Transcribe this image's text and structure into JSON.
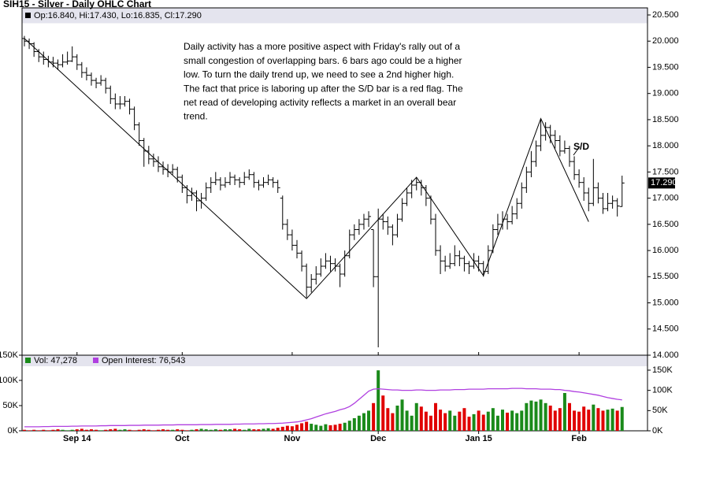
{
  "chart_data": {
    "type": "ohlc",
    "title": "SIH15 - Silver - Daily OHLC Chart",
    "ohlc_label": "Op:16.840, Hi:17.430, Lo:16.835, Cl:17.290",
    "last_label": "17.290",
    "color": "#000000",
    "categories": [
      null,
      null,
      null,
      null,
      null,
      null,
      null,
      null,
      null,
      null,
      null,
      "Sep 14",
      null,
      null,
      null,
      null,
      null,
      null,
      null,
      null,
      null,
      null,
      null,
      null,
      null,
      null,
      null,
      null,
      null,
      null,
      null,
      null,
      null,
      "Oct",
      null,
      null,
      null,
      null,
      null,
      null,
      null,
      null,
      null,
      null,
      null,
      null,
      null,
      null,
      null,
      null,
      null,
      null,
      null,
      null,
      null,
      null,
      "Nov",
      null,
      null,
      null,
      null,
      null,
      null,
      null,
      null,
      null,
      null,
      null,
      null,
      null,
      null,
      null,
      null,
      null,
      "Dec",
      null,
      null,
      null,
      null,
      null,
      null,
      null,
      null,
      null,
      null,
      null,
      null,
      null,
      null,
      null,
      null,
      null,
      null,
      null,
      null,
      "Jan 15",
      null,
      null,
      null,
      null,
      null,
      null,
      null,
      null,
      null,
      null,
      null,
      null,
      null,
      null,
      null,
      null,
      null,
      null,
      null,
      null,
      "Feb",
      null,
      null,
      null,
      null,
      null,
      null,
      null,
      null,
      null
    ],
    "ohlc": [
      [
        20.05,
        20.1,
        19.9,
        20.0
      ],
      [
        20.0,
        20.05,
        19.85,
        19.95
      ],
      [
        19.95,
        19.98,
        19.7,
        19.8
      ],
      [
        19.8,
        19.85,
        19.6,
        19.7
      ],
      [
        19.7,
        19.8,
        19.55,
        19.65
      ],
      [
        19.65,
        19.72,
        19.5,
        19.6
      ],
      [
        19.6,
        19.7,
        19.5,
        19.58
      ],
      [
        19.58,
        19.65,
        19.45,
        19.55
      ],
      [
        19.55,
        19.75,
        19.5,
        19.6
      ],
      [
        19.6,
        19.8,
        19.55,
        19.62
      ],
      [
        19.62,
        19.9,
        19.6,
        19.7
      ],
      [
        19.7,
        19.75,
        19.45,
        19.55
      ],
      [
        19.55,
        19.6,
        19.3,
        19.4
      ],
      [
        19.4,
        19.5,
        19.25,
        19.35
      ],
      [
        19.35,
        19.4,
        19.15,
        19.25
      ],
      [
        19.25,
        19.3,
        19.1,
        19.2
      ],
      [
        19.2,
        19.35,
        19.15,
        19.25
      ],
      [
        19.25,
        19.3,
        19.0,
        19.1
      ],
      [
        19.1,
        19.15,
        18.8,
        18.9
      ],
      [
        18.9,
        19.0,
        18.7,
        18.8
      ],
      [
        18.8,
        18.95,
        18.7,
        18.8
      ],
      [
        18.8,
        18.95,
        18.75,
        18.85
      ],
      [
        18.85,
        18.9,
        18.6,
        18.7
      ],
      [
        18.7,
        18.75,
        18.3,
        18.4
      ],
      [
        18.4,
        18.45,
        18.0,
        18.1
      ],
      [
        18.1,
        18.15,
        17.6,
        17.9
      ],
      [
        17.9,
        18.0,
        17.65,
        17.75
      ],
      [
        17.75,
        17.85,
        17.6,
        17.7
      ],
      [
        17.7,
        17.8,
        17.5,
        17.6
      ],
      [
        17.6,
        17.7,
        17.45,
        17.55
      ],
      [
        17.55,
        17.65,
        17.4,
        17.5
      ],
      [
        17.5,
        17.65,
        17.45,
        17.55
      ],
      [
        17.55,
        17.6,
        17.3,
        17.4
      ],
      [
        17.4,
        17.45,
        17.1,
        17.2
      ],
      [
        17.2,
        17.25,
        16.9,
        17.05
      ],
      [
        17.05,
        17.2,
        16.95,
        17.1
      ],
      [
        17.1,
        17.15,
        16.75,
        16.95
      ],
      [
        16.95,
        17.1,
        16.8,
        17.0
      ],
      [
        17.0,
        17.3,
        16.95,
        17.2
      ],
      [
        17.2,
        17.4,
        17.1,
        17.3
      ],
      [
        17.3,
        17.5,
        17.25,
        17.35
      ],
      [
        17.35,
        17.4,
        17.15,
        17.25
      ],
      [
        17.25,
        17.4,
        17.2,
        17.3
      ],
      [
        17.3,
        17.5,
        17.25,
        17.4
      ],
      [
        17.4,
        17.45,
        17.25,
        17.35
      ],
      [
        17.35,
        17.4,
        17.2,
        17.3
      ],
      [
        17.3,
        17.5,
        17.25,
        17.4
      ],
      [
        17.4,
        17.55,
        17.35,
        17.45
      ],
      [
        17.45,
        17.5,
        17.2,
        17.3
      ],
      [
        17.3,
        17.35,
        17.15,
        17.25
      ],
      [
        17.25,
        17.4,
        17.2,
        17.3
      ],
      [
        17.3,
        17.45,
        17.25,
        17.35
      ],
      [
        17.35,
        17.4,
        17.2,
        17.3
      ],
      [
        17.3,
        17.35,
        17.1,
        17.2
      ],
      [
        17.0,
        17.05,
        16.4,
        16.5
      ],
      [
        16.5,
        16.6,
        16.2,
        16.3
      ],
      [
        16.3,
        16.4,
        16.0,
        16.1
      ],
      [
        16.1,
        16.2,
        15.85,
        15.95
      ],
      [
        15.95,
        16.0,
        15.6,
        15.7
      ],
      [
        15.7,
        15.75,
        15.1,
        15.3
      ],
      [
        15.3,
        15.55,
        15.2,
        15.45
      ],
      [
        15.45,
        15.7,
        15.35,
        15.55
      ],
      [
        15.55,
        15.85,
        15.5,
        15.7
      ],
      [
        15.7,
        15.95,
        15.65,
        15.8
      ],
      [
        15.8,
        15.9,
        15.6,
        15.75
      ],
      [
        15.75,
        15.85,
        15.6,
        15.7
      ],
      [
        15.7,
        15.75,
        15.3,
        15.55
      ],
      [
        15.55,
        16.0,
        15.5,
        15.9
      ],
      [
        15.9,
        16.4,
        15.85,
        16.3
      ],
      [
        16.3,
        16.5,
        16.2,
        16.4
      ],
      [
        16.4,
        16.6,
        16.3,
        16.5
      ],
      [
        16.5,
        16.7,
        16.4,
        16.6
      ],
      [
        16.6,
        16.75,
        16.45,
        16.65
      ],
      [
        16.4,
        16.4,
        15.3,
        15.5
      ],
      [
        15.5,
        16.8,
        14.15,
        16.6
      ],
      [
        16.6,
        16.7,
        16.4,
        16.55
      ],
      [
        16.55,
        16.65,
        16.3,
        16.45
      ],
      [
        16.45,
        16.5,
        16.1,
        16.3
      ],
      [
        16.3,
        16.7,
        16.25,
        16.6
      ],
      [
        16.6,
        17.0,
        16.55,
        16.9
      ],
      [
        16.9,
        17.2,
        16.85,
        17.1
      ],
      [
        17.1,
        17.35,
        17.0,
        17.25
      ],
      [
        17.25,
        17.4,
        17.15,
        17.3
      ],
      [
        17.3,
        17.35,
        17.05,
        17.2
      ],
      [
        17.2,
        17.25,
        16.85,
        17.0
      ],
      [
        17.0,
        17.05,
        16.5,
        16.6
      ],
      [
        16.6,
        16.7,
        15.9,
        16.0
      ],
      [
        16.0,
        16.1,
        15.55,
        15.8
      ],
      [
        15.8,
        15.9,
        15.6,
        15.7
      ],
      [
        15.7,
        15.95,
        15.65,
        15.75
      ],
      [
        15.75,
        16.1,
        15.7,
        15.9
      ],
      [
        15.9,
        16.0,
        15.7,
        15.85
      ],
      [
        15.85,
        15.9,
        15.6,
        15.75
      ],
      [
        15.75,
        15.8,
        15.55,
        15.7
      ],
      [
        15.7,
        15.95,
        15.65,
        15.8
      ],
      [
        15.8,
        15.9,
        15.6,
        15.75
      ],
      [
        15.75,
        15.8,
        15.5,
        15.6
      ],
      [
        15.6,
        16.1,
        15.55,
        16.0
      ],
      [
        16.0,
        16.5,
        15.95,
        16.4
      ],
      [
        16.4,
        16.7,
        16.3,
        16.5
      ],
      [
        16.5,
        16.75,
        16.4,
        16.6
      ],
      [
        16.6,
        16.7,
        16.4,
        16.55
      ],
      [
        16.55,
        16.85,
        16.5,
        16.7
      ],
      [
        16.7,
        17.0,
        16.6,
        16.9
      ],
      [
        16.9,
        17.3,
        16.8,
        17.2
      ],
      [
        17.2,
        17.6,
        17.1,
        17.5
      ],
      [
        17.5,
        17.9,
        17.4,
        17.7
      ],
      [
        17.7,
        18.1,
        17.6,
        18.0
      ],
      [
        18.0,
        18.5,
        17.9,
        18.2
      ],
      [
        18.2,
        18.45,
        18.1,
        18.35
      ],
      [
        18.35,
        18.4,
        18.05,
        18.2
      ],
      [
        18.2,
        18.3,
        17.95,
        18.1
      ],
      [
        18.1,
        18.2,
        17.8,
        17.9
      ],
      [
        17.9,
        18.1,
        17.85,
        17.95
      ],
      [
        17.95,
        18.0,
        17.6,
        17.7
      ],
      [
        17.7,
        17.8,
        17.35,
        17.45
      ],
      [
        17.45,
        17.55,
        17.2,
        17.3
      ],
      [
        17.3,
        17.4,
        16.95,
        17.1
      ],
      [
        17.1,
        17.2,
        16.75,
        16.9
      ],
      [
        16.9,
        17.75,
        16.85,
        17.2
      ],
      [
        17.2,
        17.3,
        16.9,
        17.0
      ],
      [
        17.0,
        17.1,
        16.7,
        16.8
      ],
      [
        16.8,
        17.1,
        16.75,
        16.9
      ],
      [
        16.9,
        17.05,
        16.8,
        16.95
      ],
      [
        16.95,
        17.0,
        16.65,
        16.85
      ],
      [
        16.84,
        17.43,
        16.835,
        17.29
      ]
    ],
    "ylim": [
      14.0,
      20.5
    ],
    "yticks": [
      {
        "value": 14.0,
        "label": "14.000"
      },
      {
        "value": 14.5,
        "label": "14.500"
      },
      {
        "value": 15.0,
        "label": "15.000"
      },
      {
        "value": 15.5,
        "label": "15.500"
      },
      {
        "value": 16.0,
        "label": "16.000"
      },
      {
        "value": 16.5,
        "label": "16.500"
      },
      {
        "value": 17.0,
        "label": "17.000"
      },
      {
        "value": 17.5,
        "label": "17.500"
      },
      {
        "value": 18.0,
        "label": "18.000"
      },
      {
        "value": 18.5,
        "label": "18.500"
      },
      {
        "value": 19.0,
        "label": "19.000"
      },
      {
        "value": 19.5,
        "label": "19.500"
      },
      {
        "value": 20.0,
        "label": "20.000"
      },
      {
        "value": 20.5,
        "label": "20.500"
      }
    ],
    "annotation_lines": [
      "Daily activity has a more positive aspect with Friday's rally out of a",
      "small congestion of overlapping bars.  6 bars ago could be a higher",
      "low.  To turn the daily trend up, we need to see a 2nd higher high.",
      "The fact that price is laboring up after the S/D bar is a red flag.  The",
      "net read of developing activity reflects a market in an overall bear",
      "trend."
    ],
    "sd_label": "S/D",
    "trendline": {
      "x": [
        0,
        59,
        82,
        96,
        108,
        118
      ],
      "y": [
        20.05,
        15.08,
        17.4,
        15.52,
        18.52,
        16.55
      ]
    },
    "volume": {
      "type": "bar",
      "legend": "Vol: 47,278",
      "up_color": "#1a8a1a",
      "down_color": "#e00000",
      "values": [
        2,
        1,
        2,
        1,
        2,
        1,
        2,
        3,
        2,
        1,
        2,
        3,
        4,
        2,
        3,
        2,
        1,
        2,
        3,
        4,
        2,
        3,
        2,
        1,
        2,
        3,
        2,
        1,
        2,
        3,
        2,
        2,
        3,
        2,
        1,
        2,
        3,
        4,
        3,
        2,
        3,
        2,
        3,
        3,
        4,
        3,
        2,
        4,
        3,
        3,
        4,
        5,
        4,
        6,
        8,
        10,
        9,
        12,
        15,
        18,
        14,
        12,
        10,
        13,
        11,
        12,
        14,
        16,
        20,
        25,
        30,
        35,
        40,
        55,
        120,
        70,
        45,
        35,
        50,
        62,
        40,
        30,
        55,
        48,
        38,
        30,
        55,
        42,
        35,
        40,
        30,
        38,
        45,
        28,
        33,
        40,
        32,
        38,
        45,
        30,
        42,
        36,
        40,
        35,
        40,
        55,
        60,
        58,
        62,
        55,
        50,
        40,
        45,
        75,
        55,
        40,
        38,
        48,
        42,
        52,
        45,
        40,
        42,
        44,
        40,
        47.278
      ],
      "ylim": [
        0,
        150
      ],
      "yticks": [
        {
          "value": 0,
          "label": "0K"
        },
        {
          "value": 50,
          "label": "50K"
        },
        {
          "value": 100,
          "label": "100K"
        },
        {
          "value": 150,
          "label": "150K"
        }
      ]
    },
    "open_interest": {
      "type": "line",
      "legend": "Open Interest: 76,543",
      "color": "#b040e0",
      "axis": "y2",
      "values": [
        10,
        10,
        10,
        10,
        10.5,
        10.5,
        11,
        11,
        11,
        11,
        11.5,
        11.5,
        12,
        12,
        12,
        12,
        12.5,
        12.5,
        13,
        13,
        13,
        13,
        13.5,
        13.5,
        13.5,
        14,
        14,
        14,
        14,
        14.5,
        14.5,
        14.5,
        15,
        15,
        15,
        15,
        15,
        15.5,
        15.5,
        15.5,
        16,
        16,
        16,
        16,
        16.5,
        16.5,
        17,
        17,
        17,
        17.5,
        17.5,
        18,
        18,
        18.5,
        19,
        20,
        21,
        22,
        24,
        27,
        30,
        34,
        38,
        42,
        45,
        48,
        52,
        55,
        60,
        68,
        78,
        88,
        98,
        103,
        104,
        103,
        102,
        101,
        101,
        100,
        100,
        100,
        101,
        101,
        100,
        100,
        100,
        101,
        101,
        101,
        102,
        102,
        102,
        103,
        103,
        103,
        103,
        104,
        104,
        104,
        104,
        104,
        105,
        105,
        105,
        104,
        104,
        104,
        103,
        103,
        103,
        102,
        102,
        100,
        99,
        97,
        96,
        94,
        92,
        90,
        88,
        85,
        82,
        80,
        78,
        76.543
      ],
      "y2lim": [
        0,
        187
      ],
      "y2ticks": [
        {
          "value": 0,
          "label": "0K"
        },
        {
          "value": 50,
          "label": "50K"
        },
        {
          "value": 100,
          "label": "100K"
        },
        {
          "value": 150,
          "label": "150K"
        }
      ]
    }
  }
}
